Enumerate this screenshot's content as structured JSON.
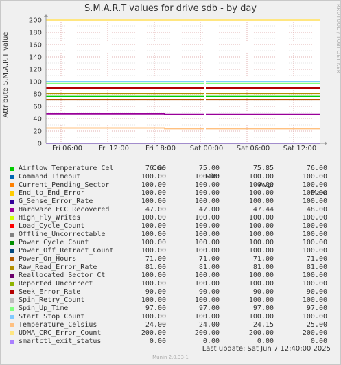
{
  "title": "S.M.A.R.T values for drive sdb - by day",
  "side_label": "RRDTOOL / TOBI OETIKER",
  "footer": {
    "last_update": "Last update:  Sat Jun  7 12:40:00 2025",
    "munin": "Munin 2.0.33-1"
  },
  "legend_header": {
    "cur": "Cur:",
    "min": "Min:",
    "avg": "Avg:",
    "max": "Max:"
  },
  "chart_data": {
    "type": "line",
    "title": "S.M.A.R.T values for drive sdb - by day",
    "ylabel": "Attribute S.M.A.R.T value",
    "xlabel": "",
    "ylim": [
      0,
      200
    ],
    "yticks": [
      0,
      20,
      40,
      60,
      80,
      100,
      120,
      140,
      160,
      180,
      200
    ],
    "xticks": [
      "Fri 06:00",
      "Fri 12:00",
      "Fri 18:00",
      "Sat 00:00",
      "Sat 06:00",
      "Sat 12:00"
    ],
    "grid": true,
    "legend": "bottom",
    "series": [
      {
        "name": "Airflow_Temperature_Cel",
        "color": "#00cc00",
        "cur": "76.00",
        "min": "75.00",
        "avg": "75.85",
        "max": "76.00"
      },
      {
        "name": "Command_Timeout",
        "color": "#0066b3",
        "cur": "100.00",
        "min": "100.00",
        "avg": "100.00",
        "max": "100.00"
      },
      {
        "name": "Current_Pending_Sector",
        "color": "#ff8000",
        "cur": "100.00",
        "min": "100.00",
        "avg": "100.00",
        "max": "100.00"
      },
      {
        "name": "End_to_End_Error",
        "color": "#ffcc00",
        "cur": "100.00",
        "min": "100.00",
        "avg": "100.00",
        "max": "100.00"
      },
      {
        "name": "G_Sense_Error_Rate",
        "color": "#330099",
        "cur": "100.00",
        "min": "100.00",
        "avg": "100.00",
        "max": "100.00"
      },
      {
        "name": "Hardware_ECC_Recovered",
        "color": "#990099",
        "cur": "47.00",
        "min": "47.00",
        "avg": "47.44",
        "max": "48.00"
      },
      {
        "name": "High_Fly_Writes",
        "color": "#ccff00",
        "cur": "100.00",
        "min": "100.00",
        "avg": "100.00",
        "max": "100.00"
      },
      {
        "name": "Load_Cycle_Count",
        "color": "#ff0000",
        "cur": "100.00",
        "min": "100.00",
        "avg": "100.00",
        "max": "100.00"
      },
      {
        "name": "Offline_Uncorrectable",
        "color": "#808080",
        "cur": "100.00",
        "min": "100.00",
        "avg": "100.00",
        "max": "100.00"
      },
      {
        "name": "Power_Cycle_Count",
        "color": "#008f00",
        "cur": "100.00",
        "min": "100.00",
        "avg": "100.00",
        "max": "100.00"
      },
      {
        "name": "Power_Off_Retract_Count",
        "color": "#00487d",
        "cur": "100.00",
        "min": "100.00",
        "avg": "100.00",
        "max": "100.00"
      },
      {
        "name": "Power_On_Hours",
        "color": "#b35a00",
        "cur": "71.00",
        "min": "71.00",
        "avg": "71.00",
        "max": "71.00"
      },
      {
        "name": "Raw_Read_Error_Rate",
        "color": "#b38f00",
        "cur": "81.00",
        "min": "81.00",
        "avg": "81.00",
        "max": "81.00"
      },
      {
        "name": "Reallocated_Sector_Ct",
        "color": "#6b006b",
        "cur": "100.00",
        "min": "100.00",
        "avg": "100.00",
        "max": "100.00"
      },
      {
        "name": "Reported_Uncorrect",
        "color": "#8fb300",
        "cur": "100.00",
        "min": "100.00",
        "avg": "100.00",
        "max": "100.00"
      },
      {
        "name": "Seek_Error_Rate",
        "color": "#b30000",
        "cur": "90.00",
        "min": "90.00",
        "avg": "90.00",
        "max": "90.00"
      },
      {
        "name": "Spin_Retry_Count",
        "color": "#bebebe",
        "cur": "100.00",
        "min": "100.00",
        "avg": "100.00",
        "max": "100.00"
      },
      {
        "name": "Spin_Up_Time",
        "color": "#80ff80",
        "cur": "97.00",
        "min": "97.00",
        "avg": "97.00",
        "max": "97.00"
      },
      {
        "name": "Start_Stop_Count",
        "color": "#80c9ff",
        "cur": "100.00",
        "min": "100.00",
        "avg": "100.00",
        "max": "100.00"
      },
      {
        "name": "Temperature_Celsius",
        "color": "#ffc080",
        "cur": "24.00",
        "min": "24.00",
        "avg": "24.15",
        "max": "25.00"
      },
      {
        "name": "UDMA_CRC_Error_Count",
        "color": "#ffe680",
        "cur": "200.00",
        "min": "200.00",
        "avg": "200.00",
        "max": "200.00"
      },
      {
        "name": "smartctl_exit_status",
        "color": "#aa80ff",
        "cur": "0.00",
        "min": "0.00",
        "avg": "0.00",
        "max": "0.00"
      }
    ]
  }
}
